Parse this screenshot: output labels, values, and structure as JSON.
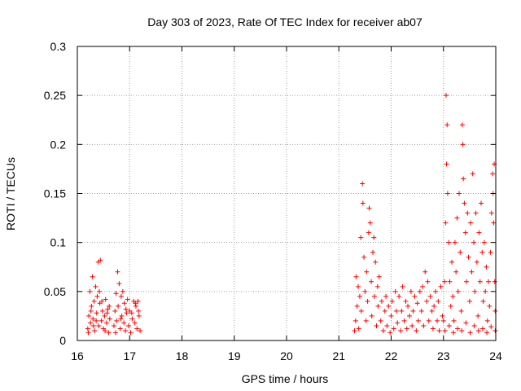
{
  "chart_data": {
    "type": "scatter",
    "title": "Day 303 of 2023, Rate Of TEC Index for receiver ab07",
    "xlabel": "GPS time / hours",
    "ylabel": "ROTI / TECUs",
    "xlim": [
      16,
      24
    ],
    "ylim": [
      0,
      0.3
    ],
    "x_ticks": [
      16,
      17,
      18,
      19,
      20,
      21,
      22,
      23,
      24
    ],
    "y_ticks": [
      0,
      0.05,
      0.1,
      0.15,
      0.2,
      0.25,
      0.3
    ],
    "x_tick_labels": [
      "16",
      "17",
      "18",
      "19",
      "20",
      "21",
      "22",
      "23",
      "24"
    ],
    "y_tick_labels": [
      "0",
      "0.05",
      "0.1",
      "0.15",
      "0.2",
      "0.25",
      "0.3"
    ],
    "grid": true,
    "marker": "+",
    "color": "#ff0000",
    "series": [
      {
        "name": "ab07",
        "points": [
          [
            16.2,
            0.012
          ],
          [
            16.22,
            0.025
          ],
          [
            16.24,
            0.05
          ],
          [
            16.25,
            0.018
          ],
          [
            16.27,
            0.035
          ],
          [
            16.29,
            0.065
          ],
          [
            16.3,
            0.022
          ],
          [
            16.32,
            0.04
          ],
          [
            16.33,
            0.01
          ],
          [
            16.35,
            0.055
          ],
          [
            16.37,
            0.028
          ],
          [
            16.38,
            0.045
          ],
          [
            16.4,
            0.08
          ],
          [
            16.41,
            0.015
          ],
          [
            16.43,
            0.038
          ],
          [
            16.44,
            0.082
          ],
          [
            16.46,
            0.02
          ],
          [
            16.48,
            0.03
          ],
          [
            16.5,
            0.012
          ],
          [
            16.52,
            0.025
          ],
          [
            16.54,
            0.042
          ],
          [
            16.56,
            0.018
          ],
          [
            16.58,
            0.032
          ],
          [
            16.6,
            0.008
          ],
          [
            16.62,
            0.022
          ],
          [
            16.21,
            0.008
          ],
          [
            16.26,
            0.03
          ],
          [
            16.31,
            0.015
          ],
          [
            16.36,
            0.02
          ],
          [
            16.42,
            0.05
          ],
          [
            16.47,
            0.04
          ],
          [
            16.53,
            0.01
          ],
          [
            16.57,
            0.028
          ],
          [
            16.61,
            0.035
          ],
          [
            16.7,
            0.015
          ],
          [
            16.72,
            0.03
          ],
          [
            16.74,
            0.048
          ],
          [
            16.75,
            0.02
          ],
          [
            16.77,
            0.07
          ],
          [
            16.78,
            0.035
          ],
          [
            16.8,
            0.058
          ],
          [
            16.82,
            0.012
          ],
          [
            16.84,
            0.045
          ],
          [
            16.85,
            0.025
          ],
          [
            16.87,
            0.05
          ],
          [
            16.89,
            0.018
          ],
          [
            16.9,
            0.038
          ],
          [
            16.92,
            0.01
          ],
          [
            16.94,
            0.028
          ],
          [
            16.96,
            0.042
          ],
          [
            16.98,
            0.015
          ],
          [
            17.0,
            0.03
          ],
          [
            17.02,
            0.008
          ],
          [
            17.05,
            0.022
          ],
          [
            17.08,
            0.04
          ],
          [
            17.1,
            0.018
          ],
          [
            17.12,
            0.035
          ],
          [
            17.14,
            0.012
          ],
          [
            17.16,
            0.04
          ],
          [
            17.18,
            0.025
          ],
          [
            17.2,
            0.01
          ],
          [
            16.73,
            0.008
          ],
          [
            16.83,
            0.022
          ],
          [
            16.93,
            0.032
          ],
          [
            17.04,
            0.028
          ],
          [
            17.11,
            0.038
          ],
          [
            17.17,
            0.03
          ],
          [
            21.3,
            0.01
          ],
          [
            21.32,
            0.02
          ],
          [
            21.33,
            0.065
          ],
          [
            21.35,
            0.035
          ],
          [
            21.37,
            0.055
          ],
          [
            21.38,
            0.012
          ],
          [
            21.4,
            0.045
          ],
          [
            21.42,
            0.105
          ],
          [
            21.43,
            0.03
          ],
          [
            21.45,
            0.16
          ],
          [
            21.46,
            0.14
          ],
          [
            21.48,
            0.085
          ],
          [
            21.5,
            0.05
          ],
          [
            21.52,
            0.02
          ],
          [
            21.53,
            0.07
          ],
          [
            21.55,
            0.04
          ],
          [
            21.57,
            0.11
          ],
          [
            21.58,
            0.135
          ],
          [
            21.6,
            0.12
          ],
          [
            21.62,
            0.06
          ],
          [
            21.63,
            0.025
          ],
          [
            21.65,
            0.09
          ],
          [
            21.67,
            0.105
          ],
          [
            21.68,
            0.045
          ],
          [
            21.7,
            0.08
          ],
          [
            21.72,
            0.015
          ],
          [
            21.74,
            0.055
          ],
          [
            21.75,
            0.035
          ],
          [
            21.77,
            0.065
          ],
          [
            21.8,
            0.02
          ],
          [
            21.82,
            0.04
          ],
          [
            21.85,
            0.01
          ],
          [
            21.88,
            0.03
          ],
          [
            21.9,
            0.045
          ],
          [
            21.92,
            0.015
          ],
          [
            21.95,
            0.035
          ],
          [
            21.98,
            0.008
          ],
          [
            22.0,
            0.025
          ],
          [
            22.02,
            0.04
          ],
          [
            22.05,
            0.012
          ],
          [
            22.08,
            0.05
          ],
          [
            22.1,
            0.03
          ],
          [
            22.12,
            0.018
          ],
          [
            22.15,
            0.045
          ],
          [
            22.18,
            0.01
          ],
          [
            22.2,
            0.03
          ],
          [
            22.22,
            0.055
          ],
          [
            22.25,
            0.02
          ],
          [
            22.28,
            0.04
          ],
          [
            22.3,
            0.012
          ],
          [
            22.32,
            0.035
          ],
          [
            22.35,
            0.025
          ],
          [
            22.38,
            0.05
          ],
          [
            22.4,
            0.015
          ],
          [
            22.42,
            0.03
          ],
          [
            22.45,
            0.045
          ],
          [
            22.48,
            0.01
          ],
          [
            22.5,
            0.038
          ],
          [
            22.52,
            0.02
          ],
          [
            22.55,
            0.05
          ],
          [
            22.58,
            0.03
          ],
          [
            22.6,
            0.055
          ],
          [
            22.62,
            0.015
          ],
          [
            22.65,
            0.07
          ],
          [
            22.68,
            0.04
          ],
          [
            22.7,
            0.06
          ],
          [
            22.72,
            0.02
          ],
          [
            22.75,
            0.045
          ],
          [
            22.78,
            0.03
          ],
          [
            22.8,
            0.012
          ],
          [
            22.82,
            0.035
          ],
          [
            22.85,
            0.05
          ],
          [
            22.88,
            0.02
          ],
          [
            22.9,
            0.04
          ],
          [
            22.92,
            0.01
          ],
          [
            22.95,
            0.055
          ],
          [
            22.98,
            0.025
          ],
          [
            23.0,
            0.02
          ],
          [
            23.02,
            0.06
          ],
          [
            23.04,
            0.12
          ],
          [
            23.05,
            0.25
          ],
          [
            23.06,
            0.18
          ],
          [
            23.07,
            0.22
          ],
          [
            23.08,
            0.15
          ],
          [
            23.1,
            0.1
          ],
          [
            23.12,
            0.06
          ],
          [
            23.14,
            0.035
          ],
          [
            23.16,
            0.08
          ],
          [
            23.18,
            0.045
          ],
          [
            23.2,
            0.02
          ],
          [
            23.22,
            0.1
          ],
          [
            23.24,
            0.07
          ],
          [
            23.26,
            0.125
          ],
          [
            23.28,
            0.05
          ],
          [
            23.3,
            0.15
          ],
          [
            23.32,
            0.09
          ],
          [
            23.34,
            0.03
          ],
          [
            23.36,
            0.22
          ],
          [
            23.37,
            0.2
          ],
          [
            23.38,
            0.165
          ],
          [
            23.4,
            0.14
          ],
          [
            23.42,
            0.11
          ],
          [
            23.44,
            0.06
          ],
          [
            23.46,
            0.13
          ],
          [
            23.48,
            0.085
          ],
          [
            23.5,
            0.04
          ],
          [
            23.52,
            0.12
          ],
          [
            23.54,
            0.07
          ],
          [
            23.56,
            0.17
          ],
          [
            23.58,
            0.1
          ],
          [
            23.6,
            0.05
          ],
          [
            23.62,
            0.13
          ],
          [
            23.64,
            0.08
          ],
          [
            23.66,
            0.025
          ],
          [
            23.68,
            0.11
          ],
          [
            23.7,
            0.06
          ],
          [
            23.72,
            0.14
          ],
          [
            23.74,
            0.09
          ],
          [
            23.76,
            0.04
          ],
          [
            23.78,
            0.1
          ],
          [
            23.8,
            0.05
          ],
          [
            23.82,
            0.075
          ],
          [
            23.84,
            0.02
          ],
          [
            23.86,
            0.06
          ],
          [
            23.88,
            0.035
          ],
          [
            23.9,
            0.09
          ],
          [
            23.92,
            0.13
          ],
          [
            23.94,
            0.17
          ],
          [
            23.95,
            0.15
          ],
          [
            23.96,
            0.12
          ],
          [
            23.97,
            0.18
          ],
          [
            23.98,
            0.06
          ],
          [
            23.99,
            0.03
          ],
          [
            23.03,
            0.01
          ],
          [
            23.11,
            0.015
          ],
          [
            23.19,
            0.008
          ],
          [
            23.27,
            0.012
          ],
          [
            23.35,
            0.01
          ],
          [
            23.43,
            0.018
          ],
          [
            23.51,
            0.008
          ],
          [
            23.59,
            0.015
          ],
          [
            23.67,
            0.01
          ],
          [
            23.75,
            0.012
          ],
          [
            23.83,
            0.008
          ],
          [
            23.91,
            0.014
          ],
          [
            23.99,
            0.01
          ]
        ]
      }
    ]
  }
}
